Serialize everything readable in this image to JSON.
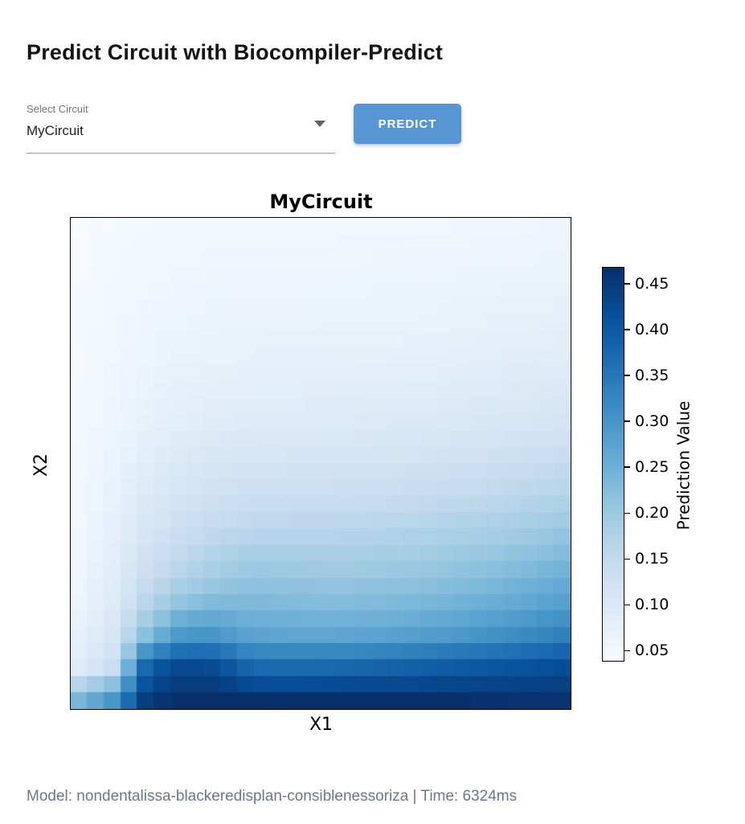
{
  "page": {
    "title": "Predict Circuit with Biocompiler-Predict",
    "footer": "Model: nondentalissa-blackeredisplan-consiblenessoriza | Time: 6324ms"
  },
  "form": {
    "select_label": "Select Circuit",
    "select_value": "MyCircuit",
    "predict_button": "PREDICT",
    "button_color": "#5796d2"
  },
  "chart_data": {
    "type": "heatmap",
    "title": "MyCircuit",
    "xlabel": "X1",
    "ylabel": "X2",
    "colorbar_label": "Prediction Value",
    "colorbar_ticks": [
      "0.05",
      "0.10",
      "0.15",
      "0.20",
      "0.25",
      "0.30",
      "0.35",
      "0.40",
      "0.45"
    ],
    "vmin": 0.0386,
    "vmax": 0.467,
    "render_grid": [
      30,
      30
    ],
    "colormap": "Blues",
    "colormap_stops": [
      [
        0.0,
        "#f7fbff"
      ],
      [
        0.125,
        "#deebf7"
      ],
      [
        0.25,
        "#c6dbef"
      ],
      [
        0.375,
        "#9ecae1"
      ],
      [
        0.5,
        "#6baed6"
      ],
      [
        0.625,
        "#4292c6"
      ],
      [
        0.75,
        "#2171b5"
      ],
      [
        0.875,
        "#08519c"
      ],
      [
        1.0,
        "#08306b"
      ]
    ],
    "values_15x15": [
      [
        0.04,
        0.044,
        0.047,
        0.049,
        0.05,
        0.05,
        0.05,
        0.051,
        0.051,
        0.052,
        0.053,
        0.054,
        0.055,
        0.056,
        0.058
      ],
      [
        0.041,
        0.046,
        0.05,
        0.053,
        0.055,
        0.055,
        0.056,
        0.056,
        0.057,
        0.057,
        0.058,
        0.059,
        0.06,
        0.062,
        0.064
      ],
      [
        0.042,
        0.048,
        0.054,
        0.058,
        0.06,
        0.061,
        0.061,
        0.062,
        0.062,
        0.063,
        0.064,
        0.066,
        0.067,
        0.069,
        0.071
      ],
      [
        0.043,
        0.051,
        0.058,
        0.063,
        0.066,
        0.067,
        0.068,
        0.068,
        0.069,
        0.07,
        0.071,
        0.073,
        0.075,
        0.077,
        0.08
      ],
      [
        0.044,
        0.054,
        0.063,
        0.069,
        0.073,
        0.075,
        0.075,
        0.076,
        0.077,
        0.078,
        0.08,
        0.082,
        0.084,
        0.087,
        0.09
      ],
      [
        0.045,
        0.057,
        0.069,
        0.077,
        0.082,
        0.084,
        0.085,
        0.086,
        0.087,
        0.088,
        0.09,
        0.093,
        0.096,
        0.099,
        0.103
      ],
      [
        0.046,
        0.061,
        0.076,
        0.086,
        0.092,
        0.095,
        0.096,
        0.097,
        0.098,
        0.1,
        0.102,
        0.105,
        0.109,
        0.113,
        0.118
      ],
      [
        0.049,
        0.066,
        0.087,
        0.101,
        0.11,
        0.114,
        0.115,
        0.116,
        0.118,
        0.12,
        0.123,
        0.127,
        0.132,
        0.138,
        0.145
      ],
      [
        0.051,
        0.071,
        0.097,
        0.115,
        0.127,
        0.133,
        0.135,
        0.136,
        0.138,
        0.141,
        0.145,
        0.15,
        0.156,
        0.163,
        0.172
      ],
      [
        0.054,
        0.077,
        0.112,
        0.136,
        0.152,
        0.16,
        0.162,
        0.163,
        0.165,
        0.168,
        0.173,
        0.179,
        0.186,
        0.194,
        0.204
      ],
      [
        0.057,
        0.084,
        0.13,
        0.16,
        0.182,
        0.198,
        0.196,
        0.193,
        0.193,
        0.196,
        0.201,
        0.208,
        0.216,
        0.226,
        0.238
      ],
      [
        0.064,
        0.093,
        0.16,
        0.205,
        0.225,
        0.228,
        0.226,
        0.222,
        0.222,
        0.226,
        0.232,
        0.24,
        0.25,
        0.261,
        0.274
      ],
      [
        0.074,
        0.108,
        0.215,
        0.29,
        0.29,
        0.265,
        0.262,
        0.26,
        0.262,
        0.268,
        0.276,
        0.286,
        0.298,
        0.313,
        0.33
      ],
      [
        0.09,
        0.13,
        0.39,
        0.43,
        0.42,
        0.37,
        0.368,
        0.37,
        0.375,
        0.38,
        0.388,
        0.395,
        0.402,
        0.41,
        0.42
      ],
      [
        0.235,
        0.3,
        0.455,
        0.468,
        0.47,
        0.468,
        0.466,
        0.468,
        0.47,
        0.47,
        0.468,
        0.466,
        0.464,
        0.462,
        0.462
      ]
    ]
  }
}
